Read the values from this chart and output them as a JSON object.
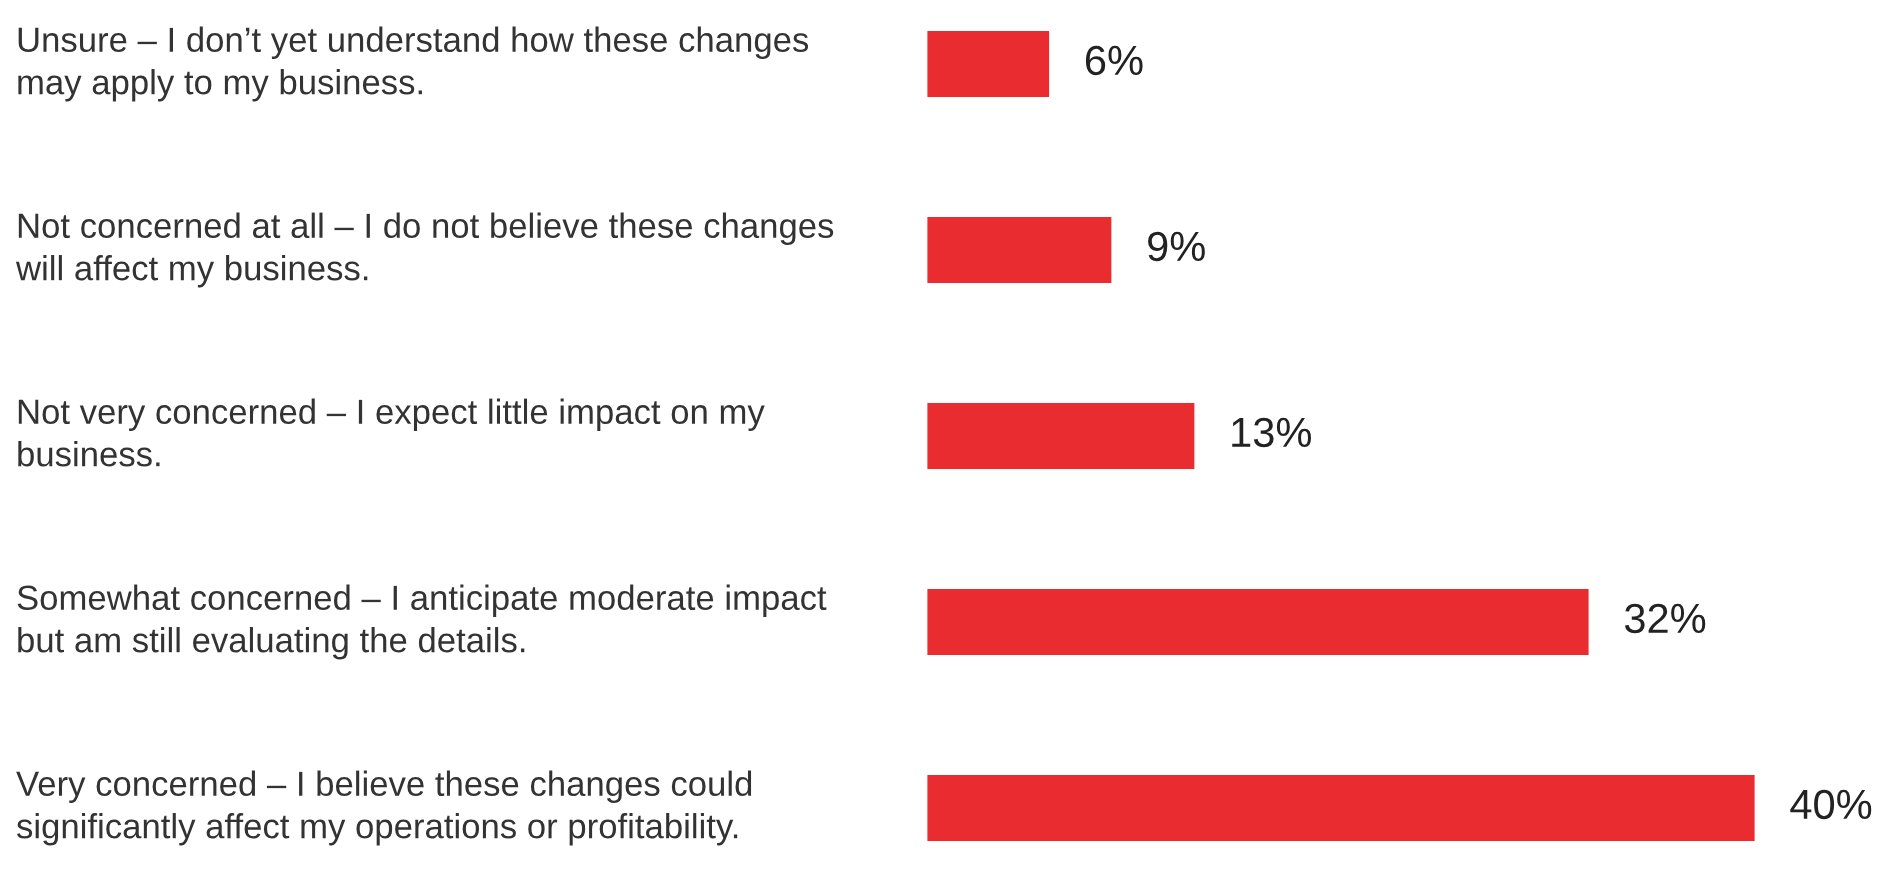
{
  "chart_data": {
    "type": "bar",
    "orientation": "horizontal",
    "categories": [
      "Unsure – I don’t yet understand how these changes may apply to my business.",
      "Not concerned at all – I do not believe these changes will affect my business.",
      "Not very concerned – I expect little impact on my business.",
      "Somewhat concerned – I anticipate moderate impact but am still evaluating the details.",
      "Very concerned – I believe these changes could significantly affect my operations or profitability."
    ],
    "values": [
      6,
      9,
      13,
      32,
      40
    ],
    "value_labels": [
      "6%",
      "9%",
      "13%",
      "32%",
      "40%"
    ],
    "color": "#e82c2f"
  }
}
